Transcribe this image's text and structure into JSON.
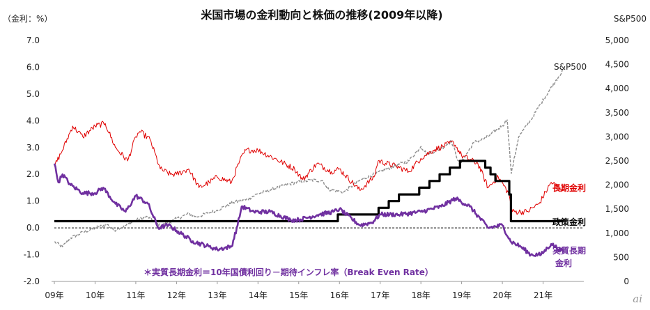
{
  "chart_data": {
    "type": "line",
    "title": "米国市場の金利動向と株価の推移(2009年以降)",
    "left_axis_unit": "（金利：%）",
    "right_axis_title": "S&P500",
    "ylim_left": [
      -2.0,
      7.0
    ],
    "ylim_right": [
      0,
      5000
    ],
    "y_ticks_left": [
      "7.0",
      "6.0",
      "5.0",
      "4.0",
      "3.0",
      "2.0",
      "1.0",
      "0.0",
      "-1.0",
      "-2.0"
    ],
    "y_ticks_right": [
      "5,000",
      "4,500",
      "4,000",
      "3,500",
      "3,000",
      "2,500",
      "2,000",
      "1,500",
      "1,000",
      "500",
      "0"
    ],
    "x_ticks": [
      "09年",
      "10年",
      "11年",
      "12年",
      "13年",
      "14年",
      "15年",
      "16年",
      "17年",
      "18年",
      "19年",
      "20年",
      "21年"
    ],
    "grid": false,
    "zero_line": "dashed",
    "series": [
      {
        "name": "S&P500",
        "axis": "right",
        "color": "#8c8c8c",
        "style": "dashed",
        "points": [
          [
            2009.0,
            820
          ],
          [
            2009.2,
            720
          ],
          [
            2009.4,
            900
          ],
          [
            2009.7,
            1020
          ],
          [
            2010.0,
            1110
          ],
          [
            2010.3,
            1180
          ],
          [
            2010.45,
            1060
          ],
          [
            2010.7,
            1140
          ],
          [
            2011.0,
            1270
          ],
          [
            2011.3,
            1340
          ],
          [
            2011.6,
            1150
          ],
          [
            2011.8,
            1220
          ],
          [
            2012.0,
            1300
          ],
          [
            2012.3,
            1400
          ],
          [
            2012.5,
            1340
          ],
          [
            2012.8,
            1420
          ],
          [
            2013.0,
            1480
          ],
          [
            2013.4,
            1640
          ],
          [
            2013.7,
            1690
          ],
          [
            2014.0,
            1820
          ],
          [
            2014.5,
            1950
          ],
          [
            2014.9,
            2050
          ],
          [
            2015.3,
            2100
          ],
          [
            2015.6,
            2090
          ],
          [
            2015.7,
            1920
          ],
          [
            2016.0,
            1870
          ],
          [
            2016.1,
            1850
          ],
          [
            2016.5,
            2100
          ],
          [
            2016.9,
            2240
          ],
          [
            2017.3,
            2380
          ],
          [
            2017.7,
            2500
          ],
          [
            2018.0,
            2800
          ],
          [
            2018.15,
            2640
          ],
          [
            2018.5,
            2760
          ],
          [
            2018.75,
            2910
          ],
          [
            2018.95,
            2420
          ],
          [
            2019.3,
            2880
          ],
          [
            2019.6,
            2980
          ],
          [
            2020.0,
            3230
          ],
          [
            2020.12,
            3350
          ],
          [
            2020.22,
            2240
          ],
          [
            2020.4,
            3000
          ],
          [
            2020.7,
            3350
          ],
          [
            2020.95,
            3700
          ],
          [
            2021.3,
            4150
          ],
          [
            2021.5,
            4400
          ]
        ]
      },
      {
        "name": "長期金利",
        "axis": "left",
        "color": "#e00000",
        "style": "solid",
        "points": [
          [
            2009.0,
            2.3
          ],
          [
            2009.2,
            2.9
          ],
          [
            2009.45,
            3.8
          ],
          [
            2009.7,
            3.4
          ],
          [
            2010.0,
            3.8
          ],
          [
            2010.25,
            3.9
          ],
          [
            2010.5,
            3.0
          ],
          [
            2010.8,
            2.5
          ],
          [
            2011.0,
            3.4
          ],
          [
            2011.1,
            3.6
          ],
          [
            2011.35,
            3.3
          ],
          [
            2011.6,
            2.2
          ],
          [
            2011.85,
            2.0
          ],
          [
            2012.0,
            2.0
          ],
          [
            2012.3,
            2.2
          ],
          [
            2012.55,
            1.5
          ],
          [
            2012.8,
            1.7
          ],
          [
            2013.0,
            1.9
          ],
          [
            2013.35,
            1.7
          ],
          [
            2013.55,
            2.5
          ],
          [
            2013.7,
            2.9
          ],
          [
            2014.0,
            2.9
          ],
          [
            2014.4,
            2.6
          ],
          [
            2014.9,
            2.2
          ],
          [
            2015.1,
            1.8
          ],
          [
            2015.45,
            2.4
          ],
          [
            2015.8,
            2.1
          ],
          [
            2016.0,
            2.2
          ],
          [
            2016.5,
            1.4
          ],
          [
            2016.85,
            1.9
          ],
          [
            2016.95,
            2.5
          ],
          [
            2017.4,
            2.3
          ],
          [
            2017.7,
            2.1
          ],
          [
            2018.0,
            2.6
          ],
          [
            2018.3,
            2.9
          ],
          [
            2018.8,
            3.2
          ],
          [
            2019.0,
            2.7
          ],
          [
            2019.4,
            2.4
          ],
          [
            2019.65,
            1.5
          ],
          [
            2019.9,
            1.9
          ],
          [
            2020.15,
            1.3
          ],
          [
            2020.25,
            0.6
          ],
          [
            2020.6,
            0.6
          ],
          [
            2020.9,
            0.9
          ],
          [
            2021.2,
            1.7
          ],
          [
            2021.5,
            1.4
          ]
        ]
      },
      {
        "name": "政策金利",
        "axis": "left",
        "color": "#000000",
        "style": "step",
        "points": [
          [
            2009.0,
            0.25
          ],
          [
            2015.96,
            0.25
          ],
          [
            2015.96,
            0.5
          ],
          [
            2016.96,
            0.5
          ],
          [
            2016.96,
            0.75
          ],
          [
            2017.21,
            0.75
          ],
          [
            2017.21,
            1.0
          ],
          [
            2017.46,
            1.0
          ],
          [
            2017.46,
            1.25
          ],
          [
            2017.96,
            1.25
          ],
          [
            2017.96,
            1.5
          ],
          [
            2018.21,
            1.5
          ],
          [
            2018.21,
            1.75
          ],
          [
            2018.46,
            1.75
          ],
          [
            2018.46,
            2.0
          ],
          [
            2018.71,
            2.0
          ],
          [
            2018.71,
            2.25
          ],
          [
            2018.96,
            2.25
          ],
          [
            2018.96,
            2.5
          ],
          [
            2019.58,
            2.5
          ],
          [
            2019.58,
            2.25
          ],
          [
            2019.71,
            2.25
          ],
          [
            2019.71,
            2.0
          ],
          [
            2019.83,
            2.0
          ],
          [
            2019.83,
            1.75
          ],
          [
            2020.17,
            1.75
          ],
          [
            2020.17,
            1.25
          ],
          [
            2020.21,
            1.25
          ],
          [
            2020.21,
            0.25
          ],
          [
            2021.5,
            0.25
          ]
        ]
      },
      {
        "name": "実質長期金利",
        "axis": "left",
        "color": "#7030a0",
        "style": "solid",
        "points": [
          [
            2009.0,
            2.4
          ],
          [
            2009.1,
            1.7
          ],
          [
            2009.2,
            2.0
          ],
          [
            2009.4,
            1.6
          ],
          [
            2009.7,
            1.3
          ],
          [
            2010.0,
            1.3
          ],
          [
            2010.2,
            1.5
          ],
          [
            2010.5,
            0.9
          ],
          [
            2010.75,
            0.6
          ],
          [
            2011.0,
            1.2
          ],
          [
            2011.3,
            0.9
          ],
          [
            2011.55,
            0.0
          ],
          [
            2011.8,
            0.1
          ],
          [
            2012.0,
            -0.1
          ],
          [
            2012.4,
            -0.5
          ],
          [
            2012.8,
            -0.7
          ],
          [
            2013.0,
            -0.8
          ],
          [
            2013.35,
            -0.7
          ],
          [
            2013.5,
            0.1
          ],
          [
            2013.6,
            0.8
          ],
          [
            2013.9,
            0.6
          ],
          [
            2014.3,
            0.6
          ],
          [
            2014.8,
            0.3
          ],
          [
            2015.0,
            0.3
          ],
          [
            2015.5,
            0.5
          ],
          [
            2015.85,
            0.6
          ],
          [
            2016.0,
            0.7
          ],
          [
            2016.5,
            0.1
          ],
          [
            2016.8,
            0.2
          ],
          [
            2017.0,
            0.5
          ],
          [
            2017.5,
            0.5
          ],
          [
            2018.0,
            0.6
          ],
          [
            2018.5,
            0.8
          ],
          [
            2018.85,
            1.1
          ],
          [
            2019.2,
            0.8
          ],
          [
            2019.65,
            0.0
          ],
          [
            2020.0,
            0.1
          ],
          [
            2020.2,
            -0.5
          ],
          [
            2020.45,
            -0.7
          ],
          [
            2020.7,
            -1.0
          ],
          [
            2020.95,
            -1.0
          ],
          [
            2021.2,
            -0.6
          ],
          [
            2021.5,
            -0.9
          ]
        ]
      }
    ],
    "labels": {
      "sp500": "S&P500",
      "long_term": "長期金利",
      "policy": "政策金利",
      "real_line1": "実質長期",
      "real_line2": "金利",
      "note": "＊実質長期金利＝10年国債利回り－期待インフレ率（Break Even Rate）"
    }
  },
  "watermark": "ai"
}
